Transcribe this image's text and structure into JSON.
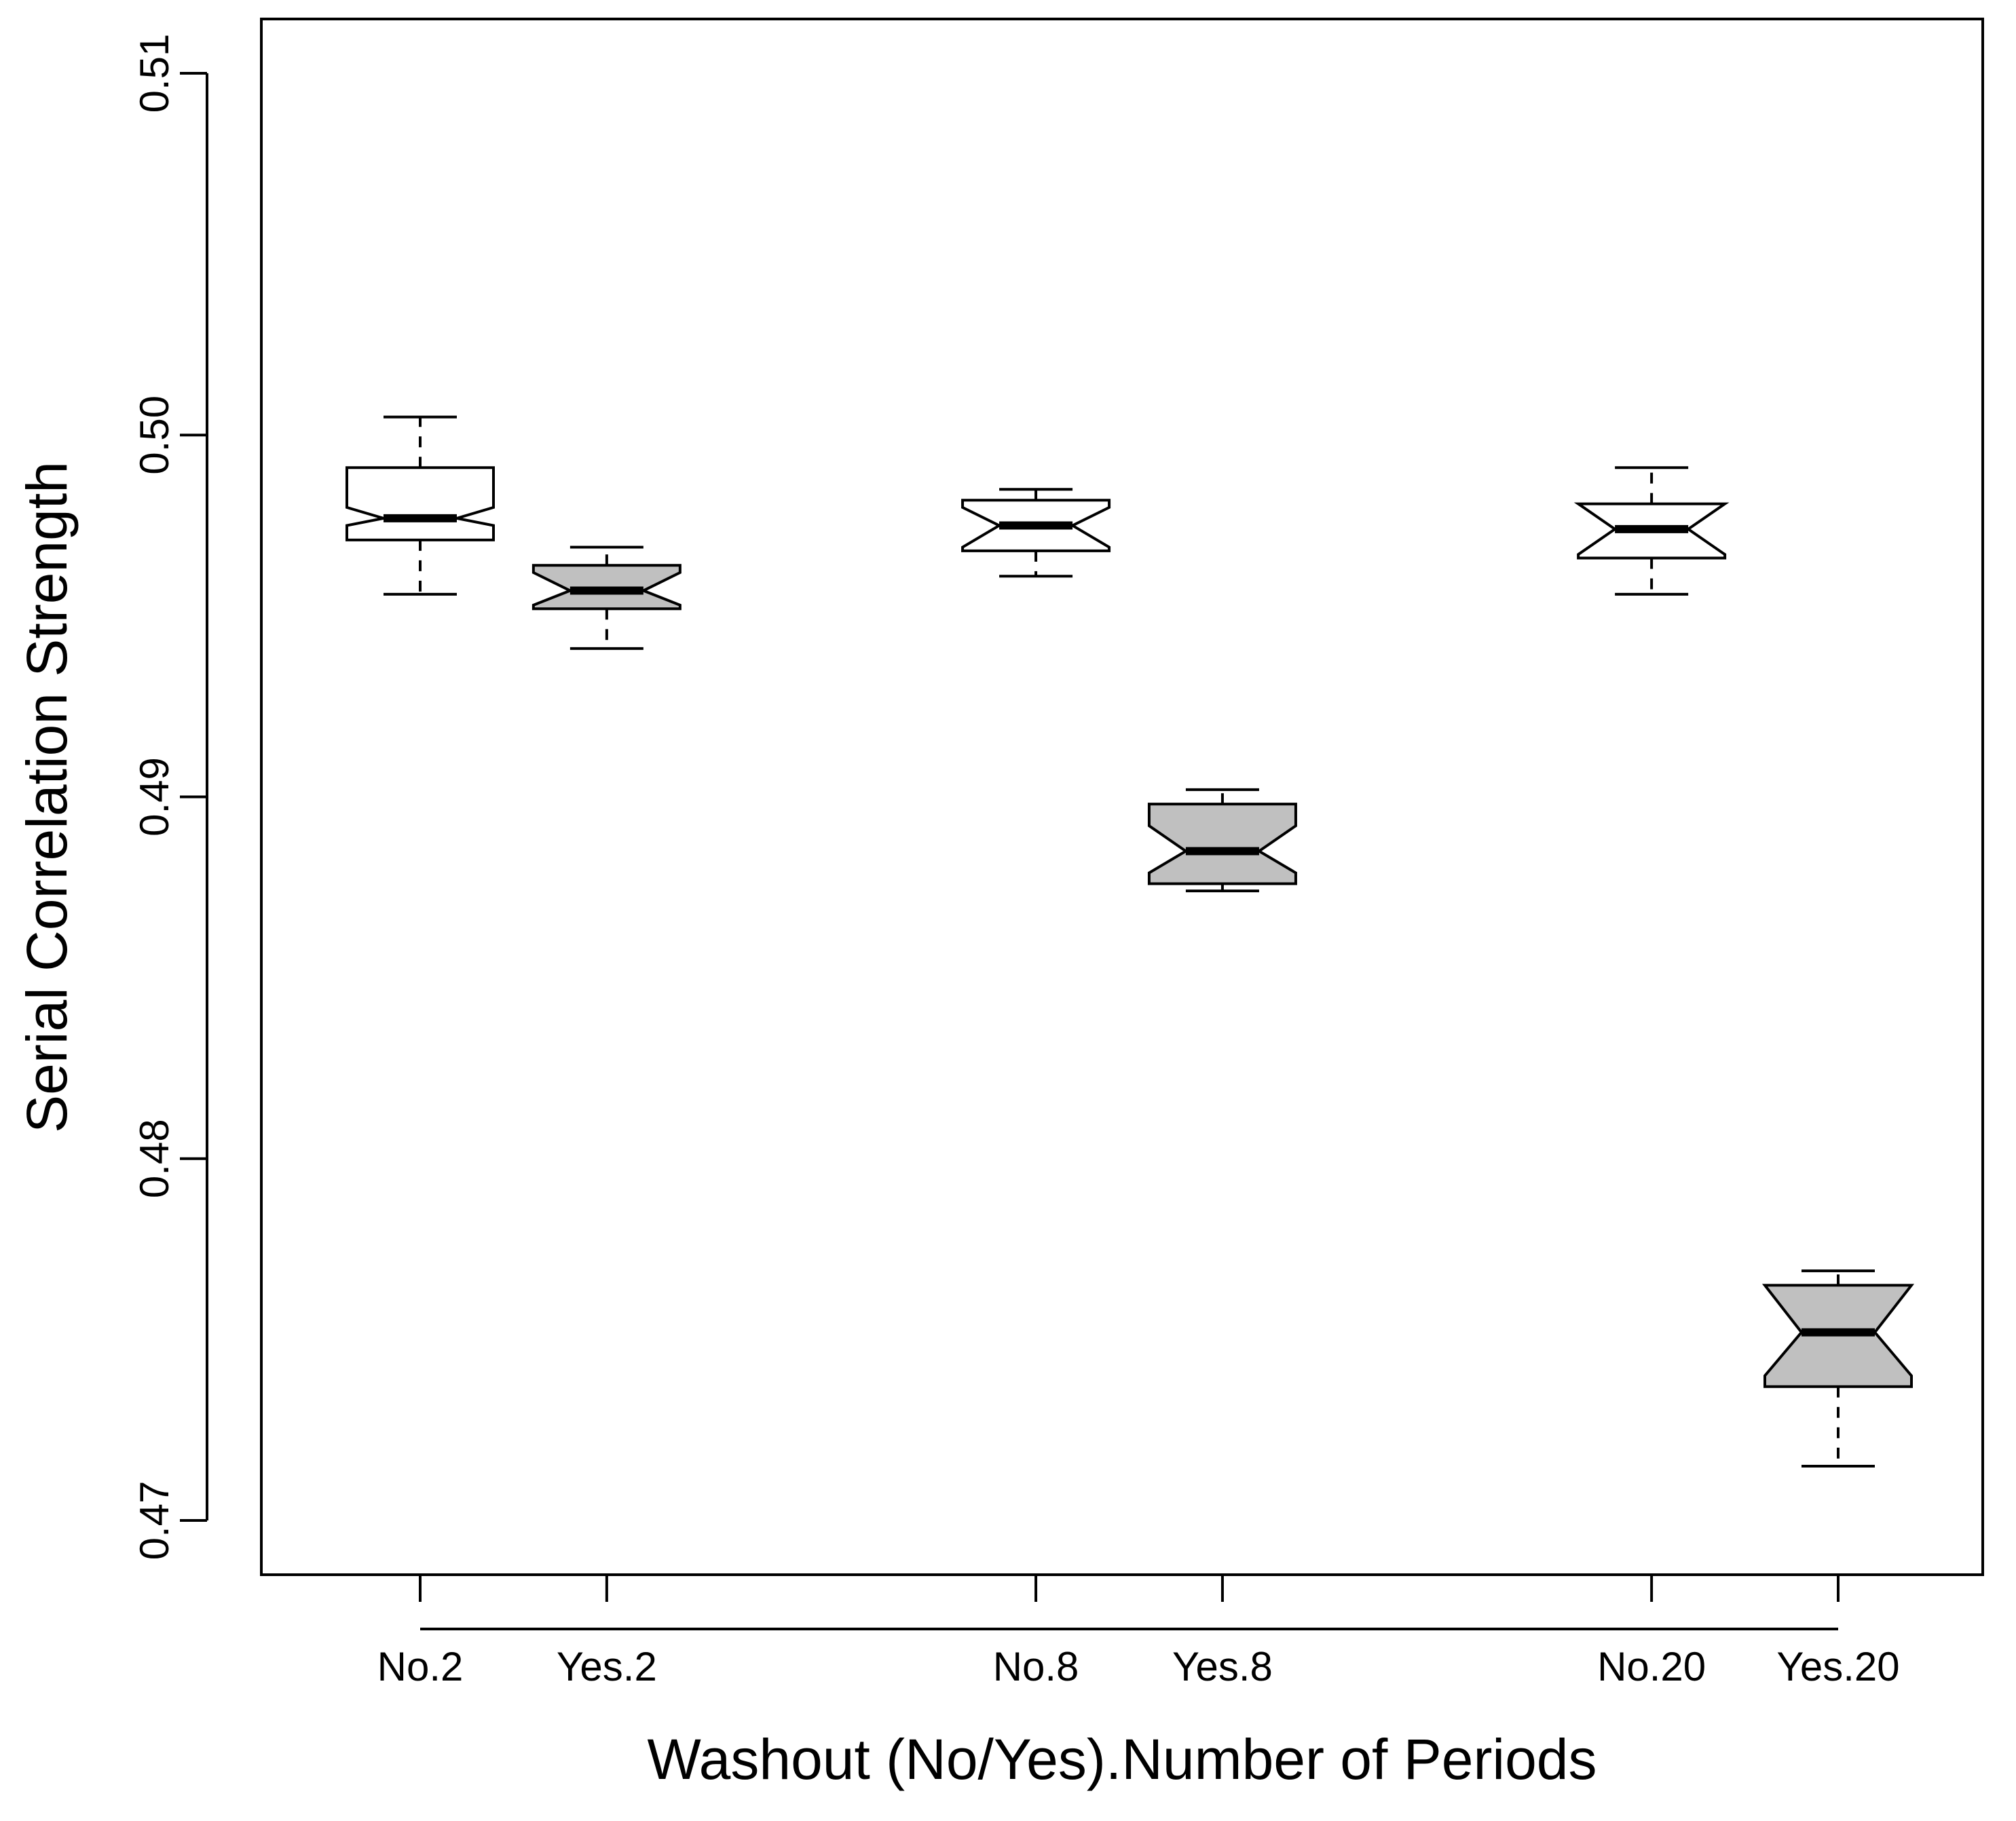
{
  "chart_data": {
    "type": "boxplot",
    "title": "",
    "xlabel": "Washout (No/Yes).Number of Periods",
    "ylabel": "Serial Correlation Strength",
    "ylim": [
      0.4685,
      0.5115
    ],
    "yticks": [
      0.47,
      0.48,
      0.49,
      0.5,
      0.51
    ],
    "ytick_labels": [
      "0.47",
      "0.48",
      "0.49",
      "0.50",
      "0.51"
    ],
    "grid": false,
    "legend": "none",
    "notched": true,
    "categories": [
      "No.2",
      "Yes.2",
      "No.8",
      "Yes.8",
      "No.20",
      "Yes.20"
    ],
    "boxes": [
      {
        "label": "No.2",
        "x": 1.0,
        "whisker_low": 0.4956,
        "q1": 0.4971,
        "median": 0.4977,
        "q3": 0.4991,
        "whisker_high": 0.5005,
        "notch_low": 0.4975,
        "notch_high": 0.498,
        "fill": "#ffffff"
      },
      {
        "label": "Yes.2",
        "x": 2.0,
        "whisker_low": 0.4941,
        "q1": 0.4952,
        "median": 0.4957,
        "q3": 0.4964,
        "whisker_high": 0.4969,
        "notch_low": 0.4953,
        "notch_high": 0.4962,
        "fill": "#c0c0c0"
      },
      {
        "label": "No.8",
        "x": 4.3,
        "whisker_low": 0.4961,
        "q1": 0.4968,
        "median": 0.4975,
        "q3": 0.4982,
        "whisker_high": 0.4985,
        "notch_low": 0.4969,
        "notch_high": 0.498,
        "fill": "#ffffff"
      },
      {
        "label": "Yes.8",
        "x": 5.3,
        "whisker_low": 0.4874,
        "q1": 0.4876,
        "median": 0.4885,
        "q3": 0.4898,
        "whisker_high": 0.4902,
        "notch_low": 0.4879,
        "notch_high": 0.4892,
        "fill": "#c0c0c0"
      },
      {
        "label": "No.20",
        "x": 7.6,
        "whisker_low": 0.4956,
        "q1": 0.4966,
        "median": 0.4974,
        "q3": 0.4981,
        "whisker_high": 0.4991,
        "notch_low": 0.4967,
        "notch_high": 0.4981,
        "fill": "#ffffff"
      },
      {
        "label": "Yes.20",
        "x": 8.6,
        "whisker_low": 0.4715,
        "q1": 0.4737,
        "median": 0.4752,
        "q3": 0.4765,
        "whisker_high": 0.4769,
        "notch_low": 0.474,
        "notch_high": 0.4765,
        "fill": "#c0c0c0"
      }
    ]
  }
}
